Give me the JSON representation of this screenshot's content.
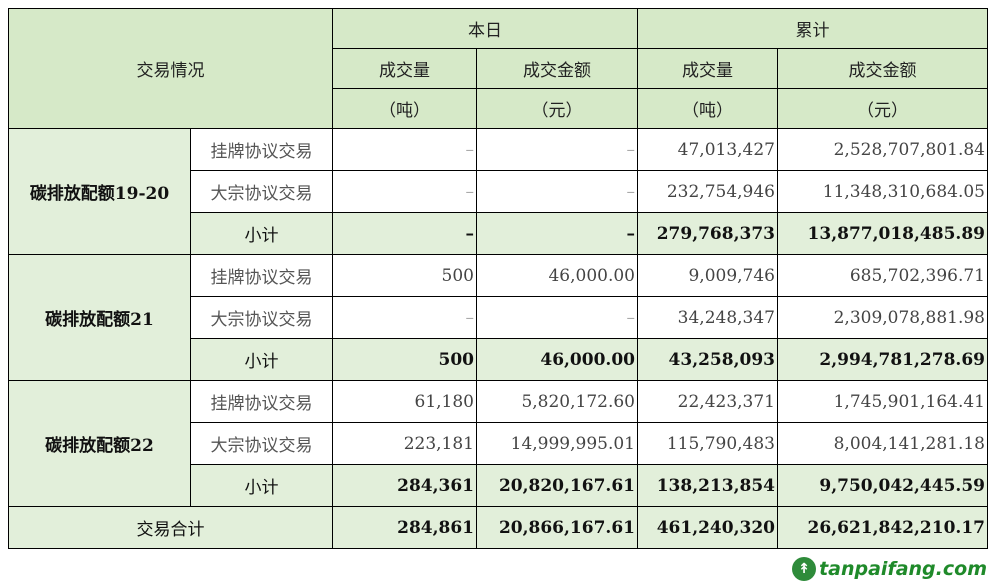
{
  "header": {
    "category": "交易情况",
    "today": "本日",
    "cumulative": "累计",
    "volume": "成交量",
    "volume_unit": "（吨）",
    "amount": "成交金额",
    "amount_unit": "（元）"
  },
  "groups": [
    {
      "name": "碳排放配额19-20",
      "rows": [
        {
          "type": "挂牌协议交易",
          "d_vol": "–",
          "d_amt": "–",
          "c_vol": "47,013,427",
          "c_amt": "2,528,707,801.84"
        },
        {
          "type": "大宗协议交易",
          "d_vol": "–",
          "d_amt": "–",
          "c_vol": "232,754,946",
          "c_amt": "11,348,310,684.05"
        }
      ],
      "subtotal": {
        "label": "小计",
        "d_vol": "–",
        "d_amt": "–",
        "c_vol": "279,768,373",
        "c_amt": "13,877,018,485.89"
      }
    },
    {
      "name": "碳排放配额21",
      "rows": [
        {
          "type": "挂牌协议交易",
          "d_vol": "500",
          "d_amt": "46,000.00",
          "c_vol": "9,009,746",
          "c_amt": "685,702,396.71"
        },
        {
          "type": "大宗协议交易",
          "d_vol": "–",
          "d_amt": "–",
          "c_vol": "34,248,347",
          "c_amt": "2,309,078,881.98"
        }
      ],
      "subtotal": {
        "label": "小计",
        "d_vol": "500",
        "d_amt": "46,000.00",
        "c_vol": "43,258,093",
        "c_amt": "2,994,781,278.69"
      }
    },
    {
      "name": "碳排放配额22",
      "rows": [
        {
          "type": "挂牌协议交易",
          "d_vol": "61,180",
          "d_amt": "5,820,172.60",
          "c_vol": "22,423,371",
          "c_amt": "1,745,901,164.41"
        },
        {
          "type": "大宗协议交易",
          "d_vol": "223,181",
          "d_amt": "14,999,995.01",
          "c_vol": "115,790,483",
          "c_amt": "8,004,141,281.18"
        }
      ],
      "subtotal": {
        "label": "小计",
        "d_vol": "284,361",
        "d_amt": "20,820,167.61",
        "c_vol": "138,213,854",
        "c_amt": "9,750,042,445.59"
      }
    }
  ],
  "total": {
    "label": "交易合计",
    "d_vol": "284,861",
    "d_amt": "20,866,167.61",
    "c_vol": "461,240,320",
    "c_amt": "26,621,842,210.17"
  },
  "watermark": {
    "text": "tanpaifang.com",
    "logo_icon": "leaf-logo-icon",
    "color": "#1f8a2a"
  }
}
